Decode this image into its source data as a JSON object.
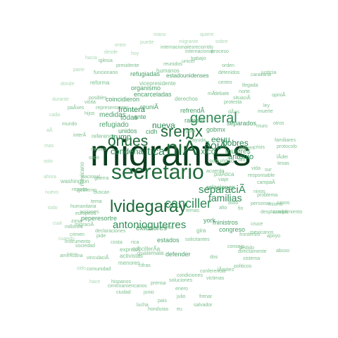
{
  "palette": [
    "#0b3d1e",
    "#1f6b3a",
    "#2e8b57",
    "#4aa06a",
    "#7cbf8e",
    "#a9d8b3"
  ],
  "words": {
    "w1": "migrantes",
    "w2": "secretario",
    "w3": "lvidegaray",
    "w4": "sremx",
    "w5": "niÃ",
    "w6": "onues",
    "w7": "general",
    "w8": "canciller",
    "w9": "antonioguterres",
    "w10": "separaciÃ",
    "w11": "familias",
    "w12": "ðoiÃ",
    "w13": "eeuu",
    "w14": "pobres",
    "w15": "tica",
    "w16": "condena",
    "w17": "nueva",
    "w18": "trump",
    "w19": "antonio",
    "w20": "frontera",
    "w21": "refugiado",
    "w22": "medidas",
    "w23": "todas",
    "w24": "relaciones",
    "w25": "exteriores",
    "w26": "congreso",
    "w27": "ministros",
    "w28": "york",
    "w29": "xico",
    "w30": "mujeres",
    "w31": "separados",
    "w32": "encarceladas",
    "w33": "organismo",
    "w34": "refrendÃ",
    "w35": "gobmx",
    "w36": "rabinos",
    "w37": "estados",
    "w38": "unidos",
    "w39": "cidh",
    "w40": "ante",
    "w41": "reuniÃ",
    "w42": "coincidieron",
    "w43": "peperesortre",
    "w44": "defender",
    "w45": "menores",
    "w46": "polÃtica",
    "w47": "gira",
    "w48": "guatemala",
    "w49": "reference",
    "w50": "washington",
    "w51": "mexicano",
    "w52": "cancillerÃa",
    "w53": "derechos",
    "w54": "humanos",
    "w55": "seguridad",
    "w56": "reforma",
    "w57": "refugiadas",
    "w58": "estadounidenses",
    "w59": "activistas",
    "w60": "solicitantes",
    "w61": "instrumento",
    "w62": "condiciones",
    "w63": "vicepresidente",
    "w64": "plan",
    "w65": "acuerdo",
    "w66": "trabajo",
    "w67": "justicia",
    "w68": "fronterizo",
    "w69": "pedido",
    "w70": "cruce",
    "w71": "ninos",
    "w72": "abuso",
    "w73": "internacionalesrecorrido",
    "w74": "protocolo",
    "w75": "mismo",
    "w76": "muro",
    "w77": "texas",
    "w78": "dio",
    "w79": "vida",
    "w80": "otros",
    "w81": "mexico",
    "w82": "unicef",
    "w83": "iglesia",
    "w84": "sede",
    "w85": "tema",
    "w86": "buscan",
    "w87": "guerra",
    "w88": "hijos",
    "w89": "centro",
    "w90": "padres",
    "w91": "ley",
    "w92": "tras",
    "w93": "dÃas",
    "w94": "muerte",
    "w95": "protesta",
    "w96": "ayuda",
    "w97": "llegada",
    "w98": "caravana",
    "w99": "apoyo",
    "w100": "casos",
    "w101": "campaÃ",
    "w102": "viaje",
    "w103": "opiniÃ",
    "w104": "desplazados",
    "w105": "cumplimiento",
    "w106": "crisis",
    "w107": "consejo",
    "w108": "sistema",
    "w109": "debate",
    "w110": "nacional",
    "w111": "politicos",
    "w112": "crimen",
    "w113": "gobierno",
    "w114": "americana",
    "w115": "personas",
    "w116": "mexicanos",
    "w117": "directamente",
    "w118": "problema",
    "w119": "lÃder",
    "w120": "situaciÃ",
    "w121": "orden",
    "w122": "proceso",
    "w123": "soluciones",
    "w124": "posibles",
    "w125": "responsable",
    "w126": "asilo",
    "w127": "internacional",
    "w128": "familiares",
    "w129": "presidente",
    "w130": "detenidos",
    "w131": "mÃ",
    "w132": "reunidos",
    "w133": "visita",
    "w134": "representantes",
    "w135": "funcionario",
    "w136": "cifras",
    "w137": "hispanos",
    "w138": "norte",
    "w139": "sur",
    "w140": "victimas",
    "w141": "lÃmites",
    "w142": "temas",
    "w143": "reporte",
    "w144": "centroamericanos",
    "w145": "acciones",
    "w146": "migraciÃ",
    "w147": "mundo",
    "w148": "paÃses",
    "w149": "millones",
    "w150": "zona",
    "w151": "interÃ",
    "w152": "declaraciones",
    "w153": "expresÃ",
    "w154": "pide",
    "w155": "humanitaria",
    "w156": "europeos",
    "w157": "costa",
    "w158": "rica",
    "w159": "sociedad",
    "w160": "vinculaciÃ",
    "w161": "comunidad",
    "w162": "ciudad",
    "w163": "dos",
    "w164": "alto",
    "w165": "fin",
    "w166": "conferencia",
    "w167": "prensa",
    "w168": "enero",
    "w169": "junio",
    "w170": "julio",
    "w171": "frenar",
    "w172": "pais",
    "w173": "lucha",
    "w174": "salvador",
    "w175": "honduras",
    "w176": "eu",
    "w177": "hoy",
    "w178": "migrante",
    "w179": "mano",
    "w180": "puede",
    "w181": "quiere",
    "w182": "sobre",
    "w183": "entre",
    "w184": "desde",
    "w185": "hacia",
    "w186": "parte",
    "w187": "donde",
    "w188": "durante",
    "w189": "cada",
    "w190": "aÃ",
    "w191": "mas",
    "w192": "solo",
    "w193": "ahora",
    "w194": "nuevo",
    "w195": "todo",
    "w196": "cual",
    "w197": "cuando",
    "w198": "tiene",
    "w199": "sido",
    "w200": "hace"
  }
}
